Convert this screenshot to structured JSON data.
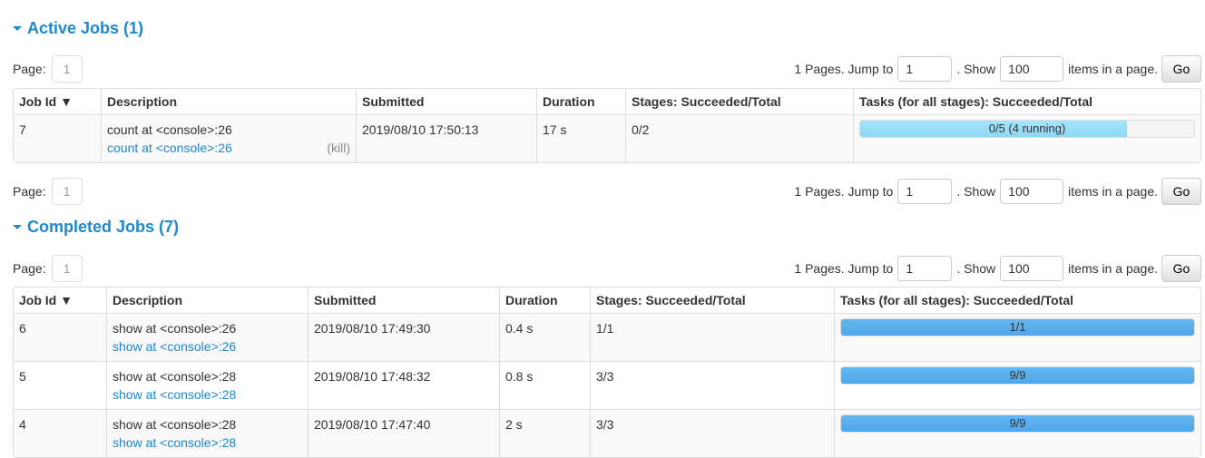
{
  "pager": {
    "page_label": "Page:",
    "page": "1",
    "pages_text": "1 Pages. Jump to",
    "jump_value": "1",
    "show_text": ". Show",
    "show_value": "100",
    "items_text": "items in a page.",
    "go": "Go"
  },
  "active": {
    "title": "Active Jobs (1)",
    "headers": [
      "Job Id ▼",
      "Description",
      "Submitted",
      "Duration",
      "Stages: Succeeded/Total",
      "Tasks (for all stages): Succeeded/Total"
    ],
    "rows": [
      {
        "id": "7",
        "desc": "count at <console>:26",
        "link": "count at <console>:26",
        "kill": "(kill)",
        "submitted": "2019/08/10 17:50:13",
        "duration": "17 s",
        "stages": "0/2",
        "tasks": "0/5 (4 running)",
        "progress": 0.8
      }
    ]
  },
  "completed": {
    "title": "Completed Jobs (7)",
    "headers": [
      "Job Id ▼",
      "Description",
      "Submitted",
      "Duration",
      "Stages: Succeeded/Total",
      "Tasks (for all stages): Succeeded/Total"
    ],
    "rows": [
      {
        "id": "6",
        "desc": "show at <console>:26",
        "link": "show at <console>:26",
        "submitted": "2019/08/10 17:49:30",
        "duration": "0.4 s",
        "stages": "1/1",
        "tasks": "1/1",
        "progress": 1
      },
      {
        "id": "5",
        "desc": "show at <console>:28",
        "link": "show at <console>:28",
        "submitted": "2019/08/10 17:48:32",
        "duration": "0.8 s",
        "stages": "3/3",
        "tasks": "9/9",
        "progress": 1
      },
      {
        "id": "4",
        "desc": "show at <console>:28",
        "link": "show at <console>:28",
        "submitted": "2019/08/10 17:47:40",
        "duration": "2 s",
        "stages": "3/3",
        "tasks": "9/9",
        "progress": 1
      }
    ]
  }
}
